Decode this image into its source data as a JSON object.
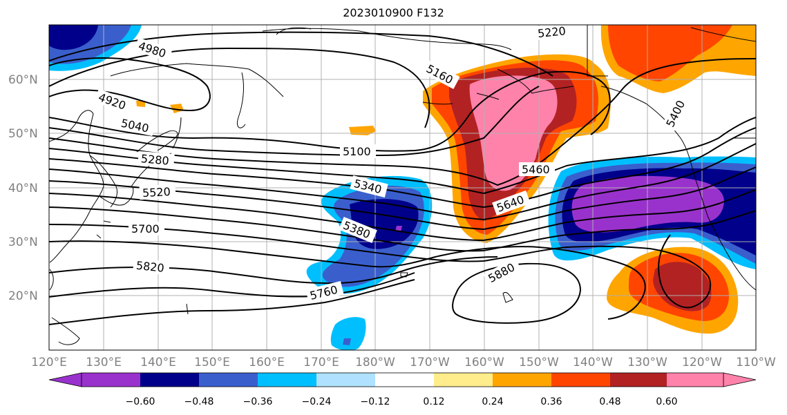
{
  "title": "2023010900 F132",
  "lat_labels": [
    "60°N",
    "50°N",
    "40°N",
    "30°N",
    "20°N"
  ],
  "lon_labels": [
    "120°E",
    "130°E",
    "140°E",
    "150°E",
    "160°E",
    "170°E",
    "180°W",
    "170°W",
    "160°W",
    "150°W",
    "140°W",
    "130°W",
    "120°W",
    "110°W"
  ],
  "contour_labels": [
    "4980",
    "4920",
    "5040",
    "5100",
    "5160",
    "5220",
    "5280",
    "5340",
    "5380",
    "5400",
    "5460",
    "5520",
    "5640",
    "5700",
    "5760",
    "5820",
    "5880"
  ],
  "colorbar": {
    "ticks": [
      "−0.60",
      "−0.48",
      "−0.36",
      "−0.24",
      "−0.12",
      "0.12",
      "0.24",
      "0.36",
      "0.48",
      "0.60"
    ],
    "colors": [
      "#9932cc",
      "#00008b",
      "#3a5fcd",
      "#00bfff",
      "#b0e2ff",
      "#ffffff",
      "#ffec8b",
      "#ffa500",
      "#ff4500",
      "#b22222",
      "#ff82ab"
    ]
  }
}
